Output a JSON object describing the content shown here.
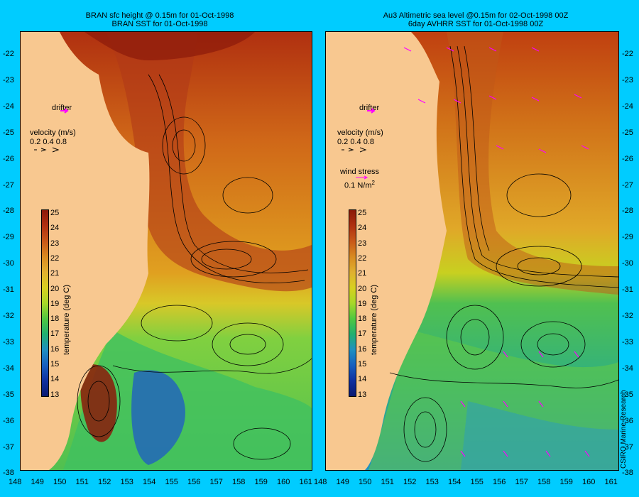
{
  "left_panel": {
    "title_line1": "BRAN sfc height @ 0.15m for 01-Oct-1998",
    "title_line2": "BRAN SST for 01-Oct-1998"
  },
  "right_panel": {
    "title_line1": "Au3 Altimetric sea level  @0.15m  for 02-Oct-1998 00Z",
    "title_line2": "6day AVHRR SST for 01-Oct-1998 00Z"
  },
  "legend": {
    "drifter": "drifter",
    "velocity_title": "velocity (m/s)",
    "velocity_values": "0.2 0.4 0.8",
    "wind_title": "wind stress",
    "wind_value": "0.1 N/m",
    "wind_superscript": "2"
  },
  "colorbar": {
    "label": "temperature (deg C)",
    "ticks": [
      "25",
      "24",
      "23",
      "22",
      "21",
      "20",
      "19",
      "18",
      "17",
      "16",
      "15",
      "14",
      "13"
    ],
    "colors": [
      "#8b1a0a",
      "#b03010",
      "#c85818",
      "#d88a20",
      "#e0b030",
      "#d8d020",
      "#a8d828",
      "#50c840",
      "#20b070",
      "#2090c0",
      "#1860c0",
      "#1030a0",
      "#0a1a70"
    ]
  },
  "axes": {
    "lat_ticks": [
      "-22",
      "-23",
      "-24",
      "-25",
      "-26",
      "-27",
      "-28",
      "-29",
      "-30",
      "-31",
      "-32",
      "-33",
      "-34",
      "-35",
      "-36",
      "-37",
      "-38"
    ],
    "lon_ticks": [
      "148",
      "149",
      "150",
      "151",
      "152",
      "153",
      "154",
      "155",
      "156",
      "157",
      "158",
      "159",
      "160",
      "161"
    ]
  },
  "credit": "CSIRO Marine Research",
  "colors": {
    "background": "#00ccff",
    "land": "#f8c890",
    "drifter_arrow": "#ff00ff"
  }
}
